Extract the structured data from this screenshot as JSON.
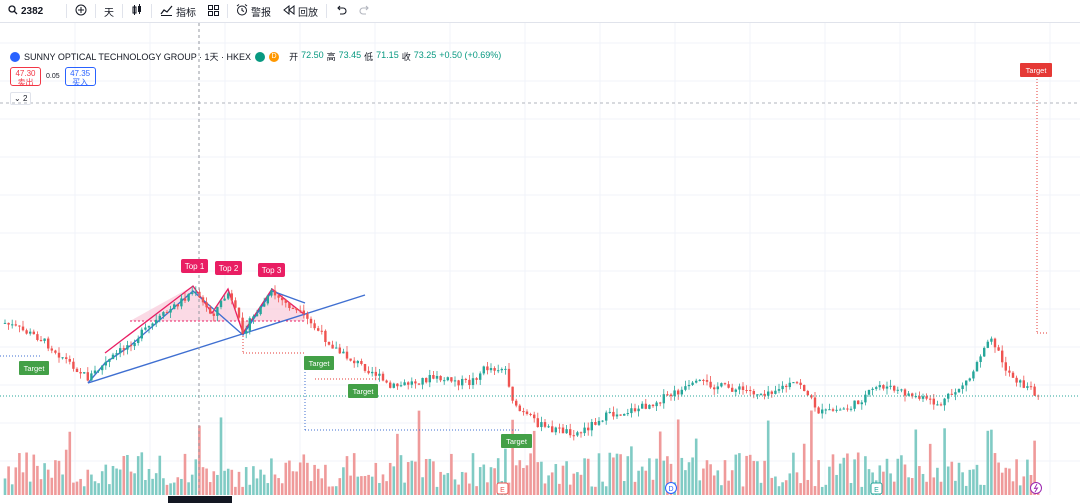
{
  "toolbar": {
    "symbol": "2382",
    "interval": "天",
    "indicators_label": "指标",
    "alert_label": "警报",
    "replay_label": "回放"
  },
  "legend": {
    "title": "SUNNY OPTICAL TECHNOLOGY GROUP · 1天 · HKEX",
    "d_badge": "D",
    "open_label": "开",
    "open": "72.50",
    "high_label": "高",
    "high": "73.45",
    "low_label": "低",
    "low": "71.15",
    "close_label": "收",
    "close": "73.25",
    "change": "+0.50 (+0.69%)"
  },
  "trade": {
    "sell_price": "47.30",
    "sell_label": "卖出",
    "spread": "0.05",
    "buy_price": "47.35",
    "buy_label": "买入",
    "indicators_count": "2"
  },
  "annotations": {
    "top1": "Top 1",
    "top2": "Top 2",
    "top3": "Top 3",
    "target": "Target"
  },
  "events": {
    "earnings": "E",
    "dividend": "D",
    "split": "E"
  },
  "colors": {
    "up": "#26a69a",
    "down": "#ef5350",
    "pattern_fill": "#f8bbd0",
    "pattern_label": "#e91e63",
    "trend": "#3f6fd1",
    "target_green": "#43a047",
    "target_red": "#e53935"
  },
  "icons": {
    "search": "search-icon",
    "add": "plus-circle-icon",
    "candles": "candles-icon",
    "indicators": "indicators-icon",
    "templates": "grid-icon",
    "alert": "alarm-icon",
    "replay": "replay-icon",
    "undo": "undo-icon",
    "redo": "redo-icon"
  }
}
